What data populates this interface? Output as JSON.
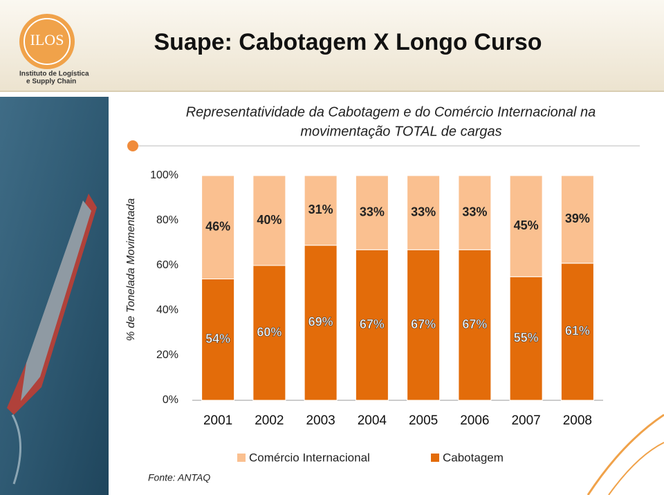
{
  "header": {
    "title": "Suape: Cabotagem X Longo Curso",
    "logo": "ILOS",
    "logo_caption": [
      "Instituto de Logística",
      "e Supply Chain"
    ]
  },
  "source": "Fonte: ANTAQ",
  "chart_data": {
    "type": "stacked-bar",
    "title": [
      "Representatividade da Cabotagem e do Comércio Internacional na",
      "movimentação TOTAL de cargas"
    ],
    "y_label": "% de Tonelada Movimentada",
    "categories": [
      "2001",
      "2002",
      "2003",
      "2004",
      "2005",
      "2006",
      "2007",
      "2008"
    ],
    "series": [
      {
        "name": "Cabotagem",
        "color": "#e36c0a",
        "values": [
          54,
          60,
          69,
          67,
          67,
          67,
          55,
          61
        ],
        "value_labels": [
          "54%",
          "60%",
          "69%",
          "67%",
          "67%",
          "67%",
          "55%",
          "61%"
        ]
      },
      {
        "name": "Comércio Internacional",
        "color": "#fac090",
        "values": [
          46,
          40,
          31,
          33,
          33,
          33,
          45,
          39
        ],
        "value_labels": [
          "46%",
          "40%",
          "31%",
          "33%",
          "33%",
          "33%",
          "45%",
          "39%"
        ]
      }
    ],
    "ylim": [
      0,
      100
    ],
    "yticks": [
      {
        "value": 0,
        "label": "0%"
      },
      {
        "value": 20,
        "label": "20%"
      },
      {
        "value": 40,
        "label": "40%"
      },
      {
        "value": 60,
        "label": "60%"
      },
      {
        "value": 80,
        "label": "80%"
      },
      {
        "value": 100,
        "label": "100%"
      }
    ],
    "legend": "bottom"
  }
}
